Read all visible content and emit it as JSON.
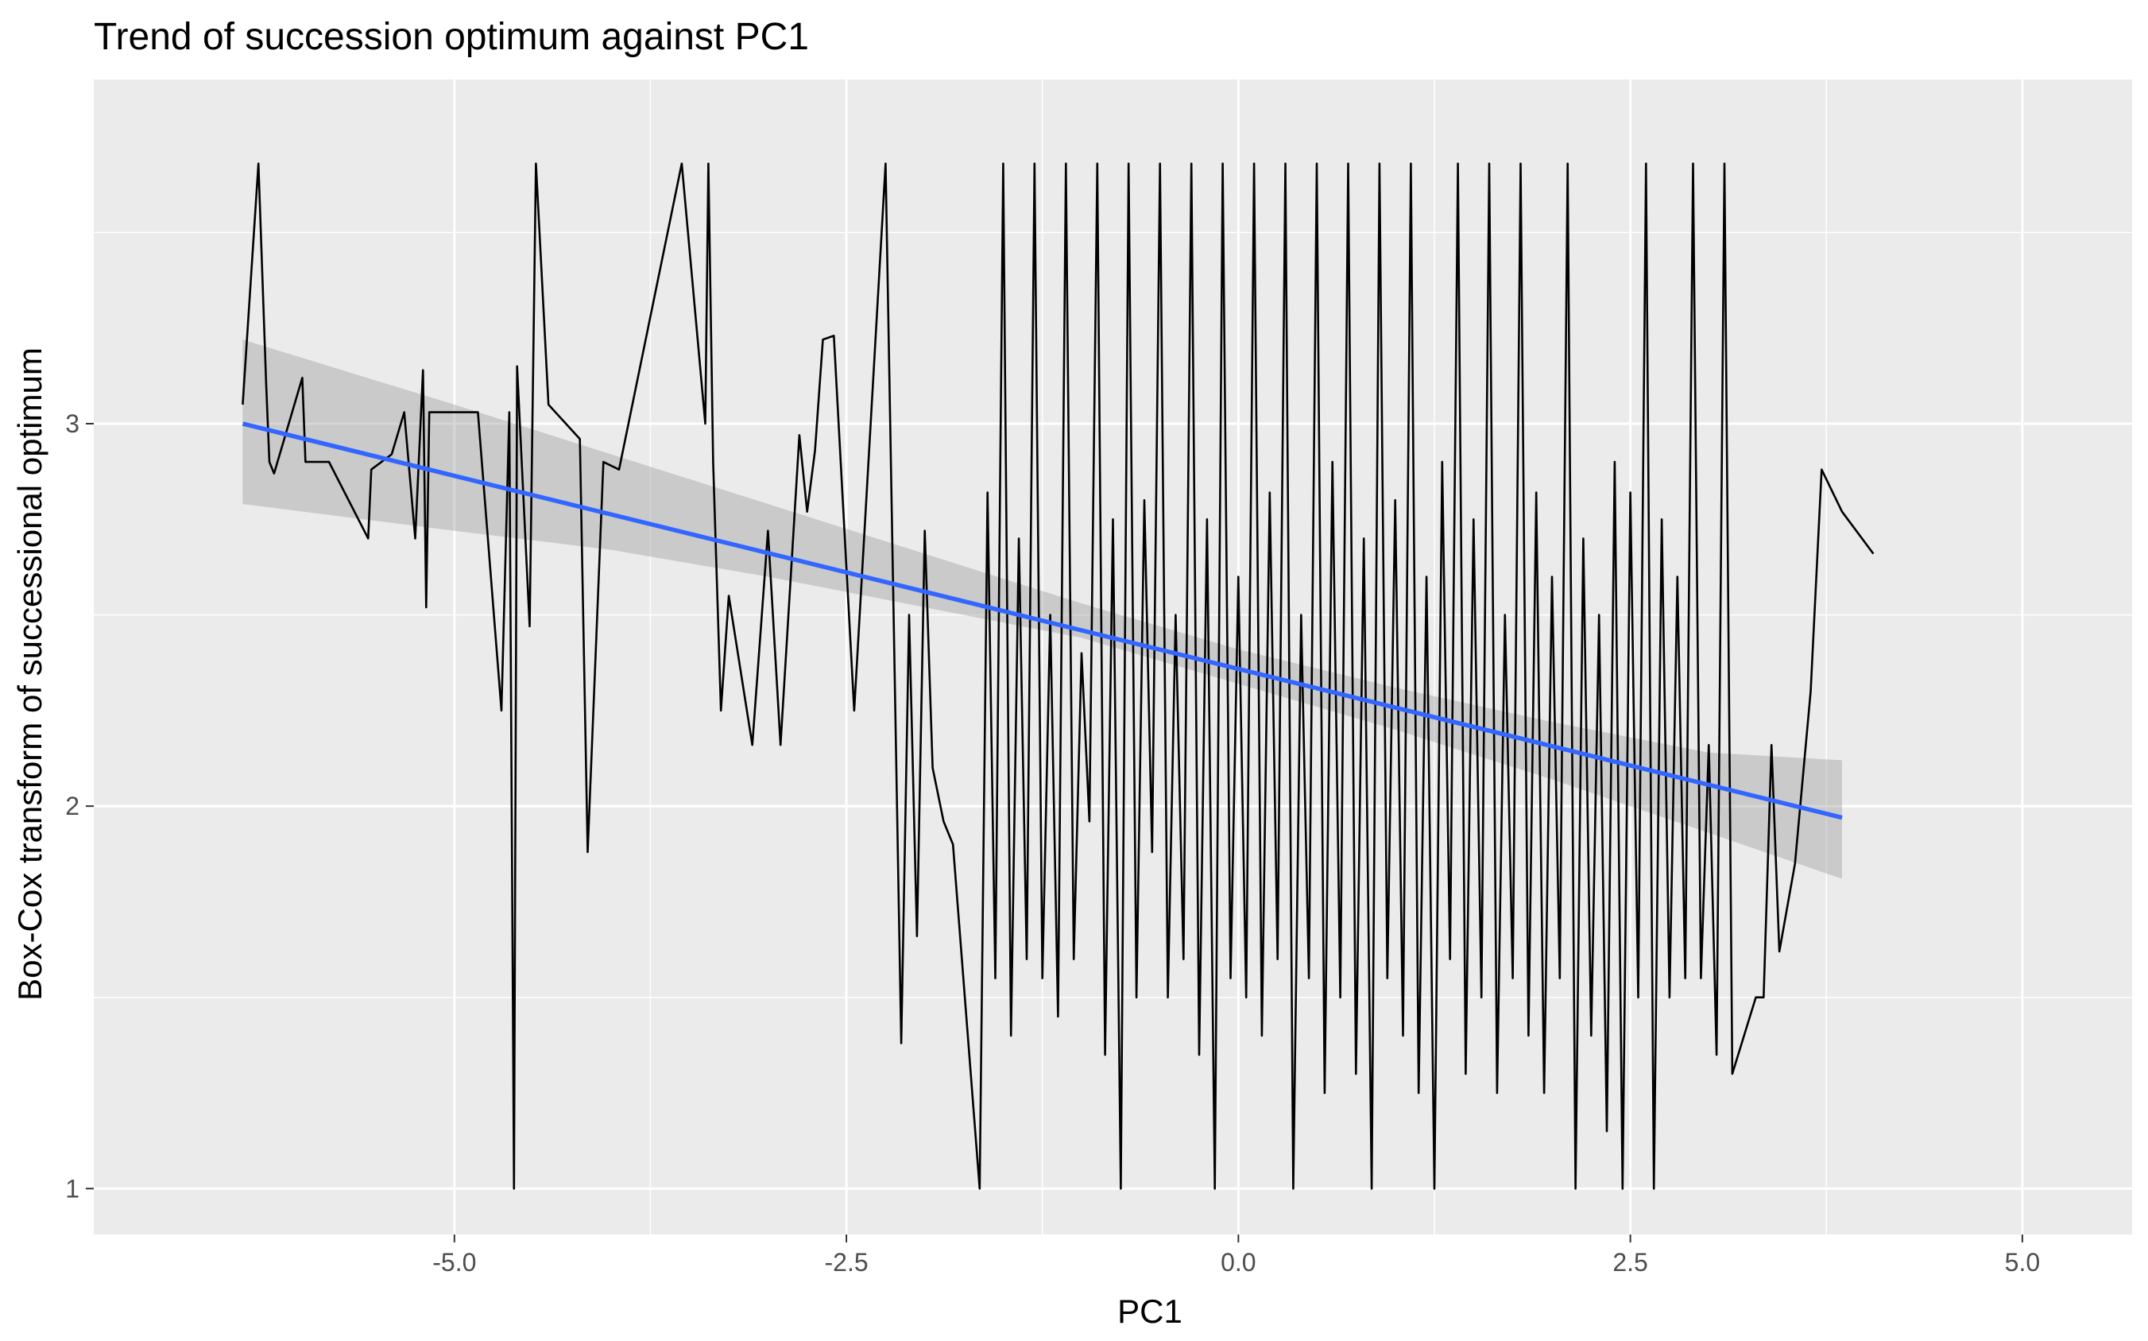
{
  "chart_data": {
    "type": "line",
    "title": "Trend of succession optimum against PC1",
    "xlabel": "PC1",
    "ylabel": "Box-Cox transform of successional optimum",
    "xlim": [
      -7.3,
      5.7
    ],
    "ylim": [
      0.88,
      3.9
    ],
    "x_ticks": [
      -5.0,
      -2.5,
      0.0,
      2.5,
      5.0
    ],
    "x_tick_labels": [
      "-5.0",
      "-2.5",
      "0.0",
      "2.5",
      "5.0"
    ],
    "y_ticks": [
      1,
      2,
      3
    ],
    "y_tick_labels": [
      "1",
      "2",
      "3"
    ],
    "grid": true,
    "colors": {
      "panel_background": "#ebebeb",
      "grid": "#ffffff",
      "data_line": "#000000",
      "fit_line": "#3366ff",
      "confidence_band": "#999999"
    },
    "series": [
      {
        "values": [
          [
            -6.35,
            3.05
          ],
          [
            -6.25,
            3.68
          ],
          [
            -6.2,
            3.1
          ],
          [
            -6.18,
            2.9
          ],
          [
            -6.15,
            2.87
          ],
          [
            -5.97,
            3.12
          ],
          [
            -5.95,
            2.9
          ],
          [
            -5.8,
            2.9
          ],
          [
            -5.55,
            2.7
          ],
          [
            -5.53,
            2.88
          ],
          [
            -5.4,
            2.92
          ],
          [
            -5.32,
            3.03
          ],
          [
            -5.25,
            2.7
          ],
          [
            -5.2,
            3.14
          ],
          [
            -5.18,
            2.52
          ],
          [
            -5.16,
            3.03
          ],
          [
            -4.92,
            3.03
          ],
          [
            -4.85,
            3.03
          ],
          [
            -4.7,
            2.25
          ],
          [
            -4.65,
            3.03
          ],
          [
            -4.62,
            1.0
          ],
          [
            -4.6,
            3.15
          ],
          [
            -4.52,
            2.47
          ],
          [
            -4.48,
            3.68
          ],
          [
            -4.4,
            3.05
          ],
          [
            -4.2,
            2.96
          ],
          [
            -4.15,
            1.88
          ],
          [
            -4.05,
            2.9
          ],
          [
            -3.95,
            2.88
          ],
          [
            -3.55,
            3.68
          ],
          [
            -3.4,
            3.0
          ],
          [
            -3.38,
            3.68
          ],
          [
            -3.35,
            2.9
          ],
          [
            -3.3,
            2.25
          ],
          [
            -3.25,
            2.55
          ],
          [
            -3.1,
            2.16
          ],
          [
            -3.0,
            2.72
          ],
          [
            -2.92,
            2.16
          ],
          [
            -2.8,
            2.97
          ],
          [
            -2.75,
            2.77
          ],
          [
            -2.7,
            2.93
          ],
          [
            -2.65,
            3.22
          ],
          [
            -2.58,
            3.23
          ],
          [
            -2.45,
            2.25
          ],
          [
            -2.25,
            3.68
          ],
          [
            -2.15,
            1.38
          ],
          [
            -2.1,
            2.5
          ],
          [
            -2.05,
            1.66
          ],
          [
            -2.0,
            2.72
          ],
          [
            -1.95,
            2.1
          ],
          [
            -1.88,
            1.96
          ],
          [
            -1.82,
            1.9
          ],
          [
            -1.65,
            1.0
          ],
          [
            -1.6,
            2.82
          ],
          [
            -1.55,
            1.55
          ],
          [
            -1.5,
            3.68
          ],
          [
            -1.45,
            1.4
          ],
          [
            -1.4,
            2.7
          ],
          [
            -1.35,
            1.6
          ],
          [
            -1.3,
            3.68
          ],
          [
            -1.25,
            1.55
          ],
          [
            -1.2,
            2.5
          ],
          [
            -1.15,
            1.45
          ],
          [
            -1.1,
            3.68
          ],
          [
            -1.05,
            1.6
          ],
          [
            -1.0,
            2.4
          ],
          [
            -0.95,
            1.96
          ],
          [
            -0.9,
            3.68
          ],
          [
            -0.85,
            1.35
          ],
          [
            -0.8,
            2.75
          ],
          [
            -0.75,
            1.0
          ],
          [
            -0.7,
            3.68
          ],
          [
            -0.65,
            1.5
          ],
          [
            -0.6,
            2.8
          ],
          [
            -0.55,
            1.88
          ],
          [
            -0.5,
            3.68
          ],
          [
            -0.45,
            1.5
          ],
          [
            -0.4,
            2.5
          ],
          [
            -0.35,
            1.6
          ],
          [
            -0.3,
            3.68
          ],
          [
            -0.25,
            1.35
          ],
          [
            -0.2,
            2.75
          ],
          [
            -0.15,
            1.0
          ],
          [
            -0.1,
            3.68
          ],
          [
            -0.05,
            1.55
          ],
          [
            0.0,
            2.6
          ],
          [
            0.05,
            1.5
          ],
          [
            0.1,
            3.68
          ],
          [
            0.15,
            1.4
          ],
          [
            0.2,
            2.82
          ],
          [
            0.25,
            1.6
          ],
          [
            0.3,
            3.68
          ],
          [
            0.35,
            1.0
          ],
          [
            0.4,
            2.5
          ],
          [
            0.45,
            1.55
          ],
          [
            0.5,
            3.68
          ],
          [
            0.55,
            1.25
          ],
          [
            0.6,
            2.9
          ],
          [
            0.65,
            1.5
          ],
          [
            0.7,
            3.68
          ],
          [
            0.75,
            1.3
          ],
          [
            0.8,
            2.7
          ],
          [
            0.85,
            1.0
          ],
          [
            0.9,
            3.68
          ],
          [
            0.95,
            1.55
          ],
          [
            1.0,
            2.8
          ],
          [
            1.05,
            1.4
          ],
          [
            1.1,
            3.68
          ],
          [
            1.15,
            1.25
          ],
          [
            1.2,
            2.6
          ],
          [
            1.25,
            1.0
          ],
          [
            1.3,
            2.9
          ],
          [
            1.35,
            1.6
          ],
          [
            1.4,
            3.68
          ],
          [
            1.45,
            1.3
          ],
          [
            1.5,
            2.75
          ],
          [
            1.55,
            1.5
          ],
          [
            1.6,
            3.68
          ],
          [
            1.65,
            1.25
          ],
          [
            1.7,
            2.5
          ],
          [
            1.75,
            1.55
          ],
          [
            1.8,
            3.68
          ],
          [
            1.85,
            1.4
          ],
          [
            1.9,
            2.82
          ],
          [
            1.95,
            1.25
          ],
          [
            2.0,
            2.6
          ],
          [
            2.05,
            1.55
          ],
          [
            2.1,
            3.68
          ],
          [
            2.15,
            1.0
          ],
          [
            2.2,
            2.7
          ],
          [
            2.25,
            1.4
          ],
          [
            2.3,
            2.5
          ],
          [
            2.35,
            1.15
          ],
          [
            2.4,
            2.9
          ],
          [
            2.45,
            1.0
          ],
          [
            2.5,
            2.82
          ],
          [
            2.55,
            1.5
          ],
          [
            2.6,
            3.68
          ],
          [
            2.65,
            1.0
          ],
          [
            2.7,
            2.75
          ],
          [
            2.75,
            1.5
          ],
          [
            2.8,
            2.6
          ],
          [
            2.85,
            1.55
          ],
          [
            2.9,
            3.68
          ],
          [
            2.95,
            1.55
          ],
          [
            3.0,
            2.16
          ],
          [
            3.05,
            1.35
          ],
          [
            3.1,
            3.68
          ],
          [
            3.15,
            1.3
          ],
          [
            3.3,
            1.5
          ],
          [
            3.35,
            1.5
          ],
          [
            3.4,
            2.16
          ],
          [
            3.45,
            1.62
          ],
          [
            3.55,
            1.85
          ],
          [
            3.65,
            2.3
          ],
          [
            3.72,
            2.88
          ],
          [
            3.85,
            2.77
          ],
          [
            4.05,
            2.66
          ]
        ]
      }
    ],
    "regression": {
      "method": "lm",
      "x": [
        -6.35,
        3.85
      ],
      "y": [
        3.0,
        1.97
      ],
      "ci": [
        {
          "x": -6.35,
          "lo": 2.79,
          "hi": 3.22
        },
        {
          "x": -5.0,
          "lo": 2.72,
          "hi": 3.05
        },
        {
          "x": -4.0,
          "lo": 2.67,
          "hi": 2.92
        },
        {
          "x": -3.0,
          "lo": 2.6,
          "hi": 2.79
        },
        {
          "x": -2.0,
          "lo": 2.52,
          "hi": 2.66
        },
        {
          "x": -1.0,
          "lo": 2.44,
          "hi": 2.53
        },
        {
          "x": 0.0,
          "lo": 2.32,
          "hi": 2.41
        },
        {
          "x": 1.0,
          "lo": 2.2,
          "hi": 2.31
        },
        {
          "x": 2.0,
          "lo": 2.07,
          "hi": 2.22
        },
        {
          "x": 3.0,
          "lo": 1.93,
          "hi": 2.14
        },
        {
          "x": 3.85,
          "lo": 1.81,
          "hi": 2.12
        }
      ]
    }
  }
}
